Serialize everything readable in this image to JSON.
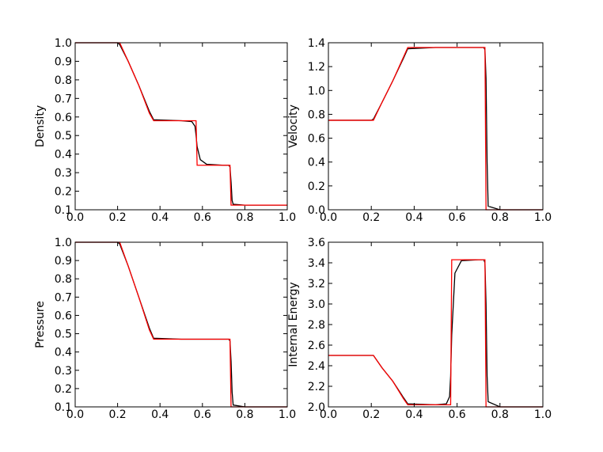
{
  "chart_data": [
    {
      "type": "line",
      "ylabel": "Density",
      "x": [
        0,
        0.2,
        0.21,
        0.25,
        0.3,
        0.35,
        0.37,
        0.5,
        0.55,
        0.565,
        0.57,
        0.575,
        0.59,
        0.62,
        0.7,
        0.725,
        0.73,
        0.735,
        0.74,
        0.745,
        0.8,
        1.0
      ],
      "series": [
        {
          "color": "#000000",
          "values": [
            1,
            1,
            0.99,
            0.9,
            0.77,
            0.63,
            0.585,
            0.58,
            0.575,
            0.55,
            0.5,
            0.44,
            0.37,
            0.345,
            0.34,
            0.34,
            0.33,
            0.25,
            0.15,
            0.13,
            0.125,
            0.125
          ]
        },
        {
          "color": "#ff0000",
          "values": [
            1,
            1,
            1,
            0.9,
            0.77,
            0.62,
            0.58,
            0.58,
            0.58,
            0.58,
            0.58,
            0.34,
            0.34,
            0.34,
            0.34,
            0.34,
            0.34,
            0.125,
            0.125,
            0.125,
            0.125,
            0.125
          ]
        }
      ],
      "xlim": [
        0,
        1
      ],
      "ylim": [
        0.1,
        1.0
      ],
      "xticks": [
        {
          "value": 0,
          "label": "0.0"
        },
        0.2,
        0.4,
        0.6,
        0.8,
        {
          "value": 1,
          "label": "1.0"
        }
      ],
      "yticks": [
        0.1,
        0.2,
        0.3,
        0.4,
        0.5,
        0.6,
        0.7,
        0.8,
        0.9,
        {
          "value": 1,
          "label": "1.0"
        }
      ]
    },
    {
      "type": "line",
      "ylabel": "Velocity",
      "x": [
        0,
        0.2,
        0.21,
        0.25,
        0.3,
        0.35,
        0.37,
        0.5,
        0.55,
        0.565,
        0.57,
        0.575,
        0.59,
        0.62,
        0.7,
        0.725,
        0.73,
        0.735,
        0.74,
        0.745,
        0.8,
        1.0
      ],
      "series": [
        {
          "color": "#000000",
          "values": [
            0.75,
            0.75,
            0.76,
            0.9,
            1.08,
            1.27,
            1.35,
            1.36,
            1.36,
            1.36,
            1.36,
            1.36,
            1.36,
            1.36,
            1.36,
            1.36,
            1.34,
            1.1,
            0.4,
            0.03,
            0,
            0
          ]
        },
        {
          "color": "#ff0000",
          "values": [
            0.75,
            0.75,
            0.75,
            0.9,
            1.08,
            1.28,
            1.36,
            1.36,
            1.36,
            1.36,
            1.36,
            1.36,
            1.36,
            1.36,
            1.36,
            1.36,
            1.36,
            0,
            0,
            0,
            0,
            0
          ]
        }
      ],
      "xlim": [
        0,
        1
      ],
      "ylim": [
        0,
        1.4
      ],
      "xticks": [
        {
          "value": 0,
          "label": "0.0"
        },
        0.2,
        0.4,
        0.6,
        0.8,
        {
          "value": 1,
          "label": "1.0"
        }
      ],
      "yticks": [
        {
          "value": 0,
          "label": "0.0"
        },
        0.2,
        0.4,
        0.6,
        0.8,
        {
          "value": 1,
          "label": "1.0"
        },
        1.2,
        1.4
      ]
    },
    {
      "type": "line",
      "ylabel": "Pressure",
      "x": [
        0,
        0.2,
        0.21,
        0.25,
        0.3,
        0.35,
        0.37,
        0.5,
        0.55,
        0.565,
        0.57,
        0.575,
        0.59,
        0.62,
        0.7,
        0.725,
        0.73,
        0.735,
        0.74,
        0.745,
        0.8,
        1.0
      ],
      "series": [
        {
          "color": "#000000",
          "values": [
            1,
            1,
            0.99,
            0.87,
            0.7,
            0.53,
            0.475,
            0.47,
            0.47,
            0.47,
            0.47,
            0.47,
            0.47,
            0.47,
            0.47,
            0.47,
            0.46,
            0.35,
            0.18,
            0.11,
            0.1,
            0.1
          ]
        },
        {
          "color": "#ff0000",
          "values": [
            1,
            1,
            1,
            0.87,
            0.7,
            0.52,
            0.47,
            0.47,
            0.47,
            0.47,
            0.47,
            0.47,
            0.47,
            0.47,
            0.47,
            0.47,
            0.47,
            0.1,
            0.1,
            0.1,
            0.1,
            0.1
          ]
        }
      ],
      "xlim": [
        0,
        1
      ],
      "ylim": [
        0.1,
        1.0
      ],
      "xticks": [
        {
          "value": 0,
          "label": "0.0"
        },
        0.2,
        0.4,
        0.6,
        0.8,
        {
          "value": 1,
          "label": "1.0"
        }
      ],
      "yticks": [
        0.1,
        0.2,
        0.3,
        0.4,
        0.5,
        0.6,
        0.7,
        0.8,
        0.9,
        {
          "value": 1,
          "label": "1.0"
        }
      ]
    },
    {
      "type": "line",
      "ylabel": "Internal Energy",
      "x": [
        0,
        0.2,
        0.21,
        0.25,
        0.3,
        0.35,
        0.37,
        0.5,
        0.55,
        0.565,
        0.57,
        0.575,
        0.59,
        0.62,
        0.7,
        0.725,
        0.73,
        0.735,
        0.74,
        0.745,
        0.8,
        1.0
      ],
      "series": [
        {
          "color": "#000000",
          "values": [
            2.5,
            2.5,
            2.5,
            2.38,
            2.25,
            2.09,
            2.03,
            2.02,
            2.03,
            2.1,
            2.3,
            2.7,
            3.3,
            3.42,
            3.43,
            3.43,
            3.4,
            3.0,
            2.3,
            2.05,
            2.0,
            2.0
          ]
        },
        {
          "color": "#ff0000",
          "values": [
            2.5,
            2.5,
            2.5,
            2.38,
            2.25,
            2.08,
            2.02,
            2.02,
            2.02,
            2.02,
            2.02,
            3.43,
            3.43,
            3.43,
            3.43,
            3.43,
            3.43,
            2.0,
            2.0,
            2.0,
            2.0,
            2.0
          ]
        }
      ],
      "xlim": [
        0,
        1
      ],
      "ylim": [
        2.0,
        3.6
      ],
      "xticks": [
        {
          "value": 0,
          "label": "0.0"
        },
        0.2,
        0.4,
        0.6,
        0.8,
        {
          "value": 1,
          "label": "1.0"
        }
      ],
      "yticks": [
        {
          "value": 2,
          "label": "2.0"
        },
        2.2,
        2.4,
        2.6,
        2.8,
        {
          "value": 3,
          "label": "3.0"
        },
        3.2,
        3.4,
        3.6
      ]
    }
  ]
}
